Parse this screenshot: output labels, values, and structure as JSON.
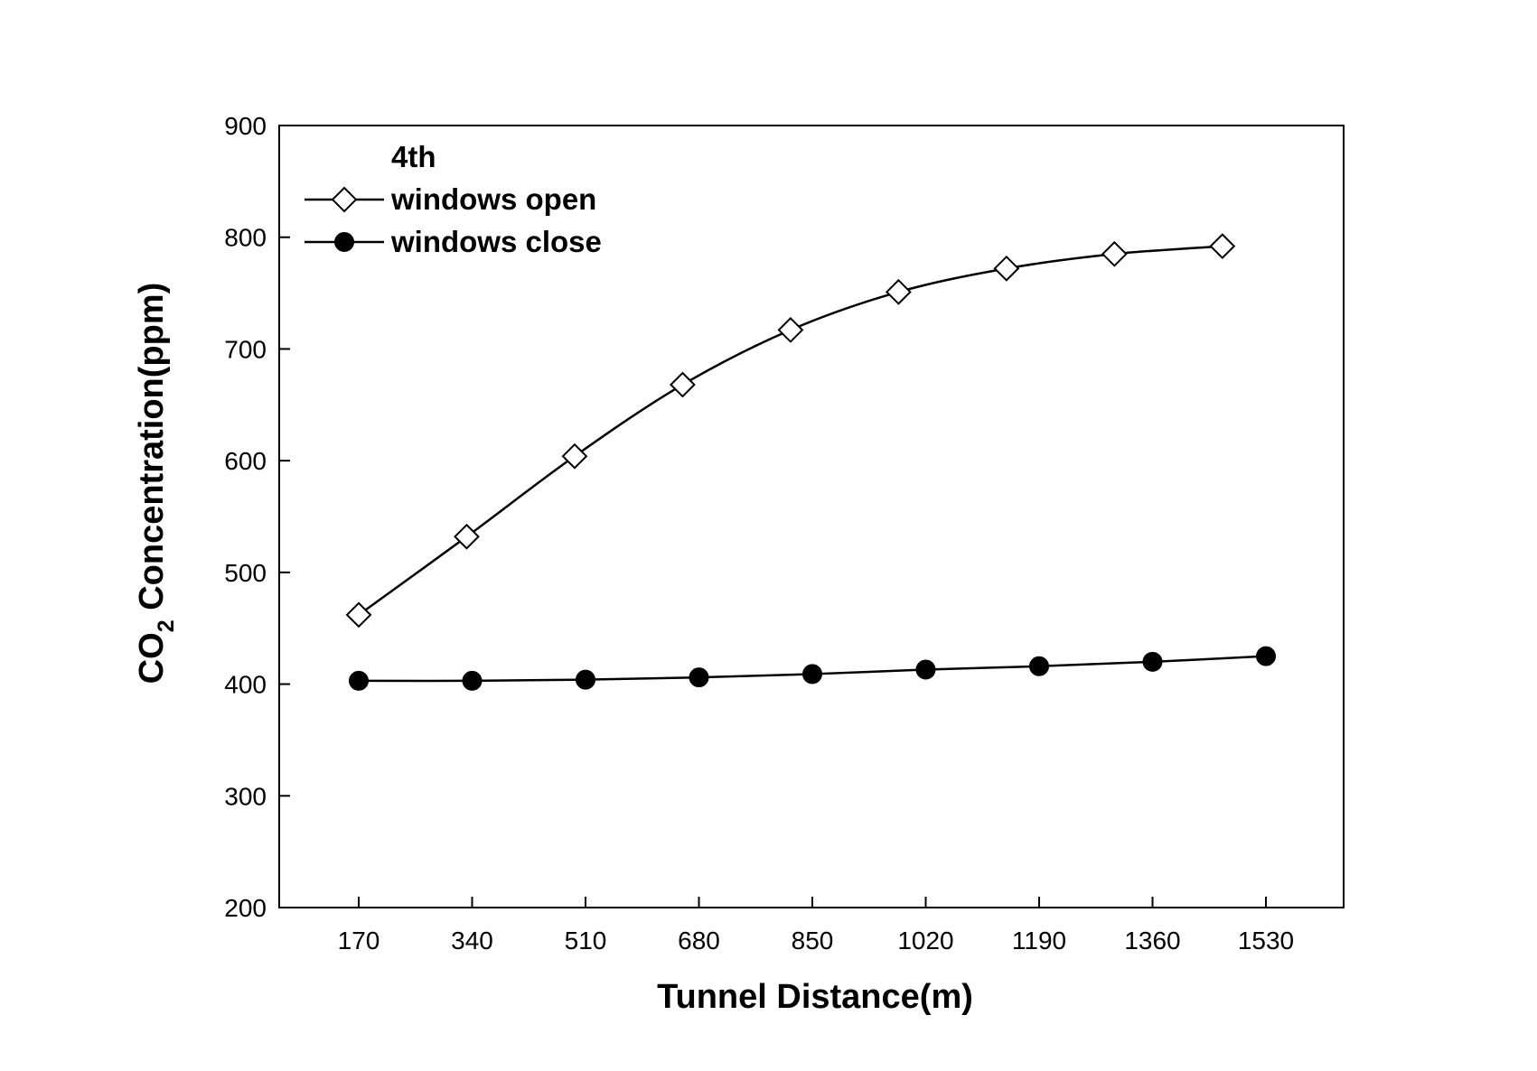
{
  "chart_data": {
    "type": "line",
    "x": [
      170,
      340,
      510,
      680,
      850,
      1020,
      1190,
      1360,
      1530
    ],
    "categories": [
      "170",
      "340",
      "510",
      "680",
      "850",
      "1020",
      "1190",
      "1360",
      "1530"
    ],
    "xlabel": "Tunnel Distance(m)",
    "ylabel_main": "CO",
    "ylabel_sub": "2",
    "ylabel_rest": " Concentration(ppm)",
    "ylim": [
      200,
      900
    ],
    "yticks": [
      200,
      300,
      400,
      500,
      600,
      700,
      800,
      900
    ],
    "grid": false,
    "legend_heading": "4th",
    "legend_position": "top-left",
    "series": [
      {
        "name": "windows open",
        "marker": "open-diamond",
        "color": "#000000",
        "x": [
          170,
          340,
          510,
          680,
          850,
          1020,
          1190,
          1360,
          1530
        ],
        "values": [
          462,
          532,
          604,
          668,
          717,
          751,
          772,
          785,
          792
        ]
      },
      {
        "name": "windows close",
        "marker": "filled-circle",
        "color": "#000000",
        "x": [
          170,
          340,
          510,
          680,
          850,
          1020,
          1190,
          1360,
          1530
        ],
        "values": [
          403,
          403,
          404,
          406,
          409,
          413,
          416,
          420,
          425
        ]
      }
    ]
  }
}
